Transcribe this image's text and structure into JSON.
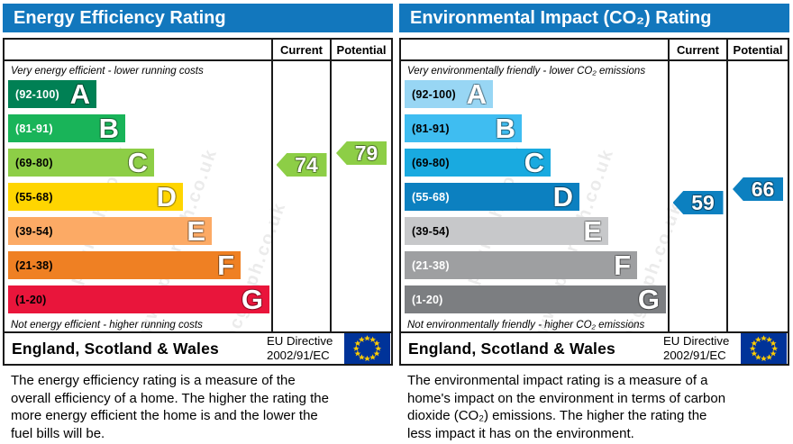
{
  "watermark": "epcgraph.co.uk\nwww.epcgraph.co.uk\nepcgraph.co.uk",
  "theme": {
    "header_blue": "#1277bd",
    "border_black": "#1a1a1a"
  },
  "eu_flag": {
    "background": "#003399",
    "star": "#ffcc00"
  },
  "panels": [
    {
      "id": "energy",
      "title": "Energy Efficiency Rating",
      "columns": {
        "current": "Current",
        "potential": "Potential"
      },
      "top_caption": "Very energy efficient - lower running costs",
      "bottom_caption": "Not energy efficient - higher running costs",
      "bands": [
        {
          "grade": "A",
          "range": "(92-100)",
          "min": 92,
          "max": 100,
          "color": "#008054",
          "label_color": "#ffffff"
        },
        {
          "grade": "B",
          "range": "(81-91)",
          "min": 81,
          "max": 91,
          "color": "#19b459",
          "label_color": "#ffffff"
        },
        {
          "grade": "C",
          "range": "(69-80)",
          "min": 69,
          "max": 80,
          "color": "#8dce46",
          "label_color": "#000000"
        },
        {
          "grade": "D",
          "range": "(55-68)",
          "min": 55,
          "max": 68,
          "color": "#ffd500",
          "label_color": "#000000"
        },
        {
          "grade": "E",
          "range": "(39-54)",
          "min": 39,
          "max": 54,
          "color": "#fcaa65",
          "label_color": "#000000"
        },
        {
          "grade": "F",
          "range": "(21-38)",
          "min": 21,
          "max": 38,
          "color": "#ef8023",
          "label_color": "#000000"
        },
        {
          "grade": "G",
          "range": "(1-20)",
          "min": 1,
          "max": 20,
          "color": "#e9153b",
          "label_color": "#000000"
        }
      ],
      "current": {
        "value": 74,
        "color": "#8dce46"
      },
      "potential": {
        "value": 79,
        "color": "#8dce46"
      },
      "footer": {
        "region": "England, Scotland & Wales",
        "directive_line1": "EU Directive",
        "directive_line2": "2002/91/EC"
      },
      "description": "The energy efficiency rating is a measure of the overall efficiency of a home. The higher the rating the more energy efficient the home is and the lower the fuel bills will be."
    },
    {
      "id": "environmental",
      "title": "Environmental Impact (CO₂) Rating",
      "columns": {
        "current": "Current",
        "potential": "Potential"
      },
      "top_caption": "Very environmentally friendly - lower CO₂ emissions",
      "bottom_caption": "Not environmentally friendly - higher CO₂ emissions",
      "bands": [
        {
          "grade": "A",
          "range": "(92-100)",
          "min": 92,
          "max": 100,
          "color": "#98d6f4",
          "label_color": "#000000"
        },
        {
          "grade": "B",
          "range": "(81-91)",
          "min": 81,
          "max": 91,
          "color": "#3fbdf1",
          "label_color": "#000000"
        },
        {
          "grade": "C",
          "range": "(69-80)",
          "min": 69,
          "max": 80,
          "color": "#19aae0",
          "label_color": "#000000"
        },
        {
          "grade": "D",
          "range": "(55-68)",
          "min": 55,
          "max": 68,
          "color": "#0c80c0",
          "label_color": "#ffffff"
        },
        {
          "grade": "E",
          "range": "(39-54)",
          "min": 39,
          "max": 54,
          "color": "#c7c8ca",
          "label_color": "#000000"
        },
        {
          "grade": "F",
          "range": "(21-38)",
          "min": 21,
          "max": 38,
          "color": "#9e9fa1",
          "label_color": "#ffffff"
        },
        {
          "grade": "G",
          "range": "(1-20)",
          "min": 1,
          "max": 20,
          "color": "#7c7e81",
          "label_color": "#ffffff"
        }
      ],
      "current": {
        "value": 59,
        "color": "#0c80c0"
      },
      "potential": {
        "value": 66,
        "color": "#0c80c0"
      },
      "footer": {
        "region": "England, Scotland & Wales",
        "directive_line1": "EU Directive",
        "directive_line2": "2002/91/EC"
      },
      "description": "The environmental impact rating is a measure of a home's impact on the environment in terms of carbon dioxide (CO₂) emissions. The higher the rating the less impact it has on the environment."
    }
  ],
  "chart_data": [
    {
      "type": "bar",
      "title": "Energy Efficiency Rating",
      "categories": [
        "A (92-100)",
        "B (81-91)",
        "C (69-80)",
        "D (55-68)",
        "E (39-54)",
        "F (21-38)",
        "G (1-20)"
      ],
      "series": [
        {
          "name": "Current",
          "values": [
            74
          ],
          "band": "C"
        },
        {
          "name": "Potential",
          "values": [
            79
          ],
          "band": "C"
        }
      ],
      "xlabel": "",
      "ylabel": "",
      "ylim": [
        1,
        100
      ],
      "annotations": [
        "Very energy efficient - lower running costs",
        "Not energy efficient - higher running costs",
        "England, Scotland & Wales",
        "EU Directive 2002/91/EC"
      ]
    },
    {
      "type": "bar",
      "title": "Environmental Impact (CO₂) Rating",
      "categories": [
        "A (92-100)",
        "B (81-91)",
        "C (69-80)",
        "D (55-68)",
        "E (39-54)",
        "F (21-38)",
        "G (1-20)"
      ],
      "series": [
        {
          "name": "Current",
          "values": [
            59
          ],
          "band": "D"
        },
        {
          "name": "Potential",
          "values": [
            66
          ],
          "band": "D"
        }
      ],
      "xlabel": "",
      "ylabel": "",
      "ylim": [
        1,
        100
      ],
      "annotations": [
        "Very environmentally friendly - lower CO₂ emissions",
        "Not environmentally friendly - higher CO₂ emissions",
        "England, Scotland & Wales",
        "EU Directive 2002/91/EC"
      ]
    }
  ]
}
